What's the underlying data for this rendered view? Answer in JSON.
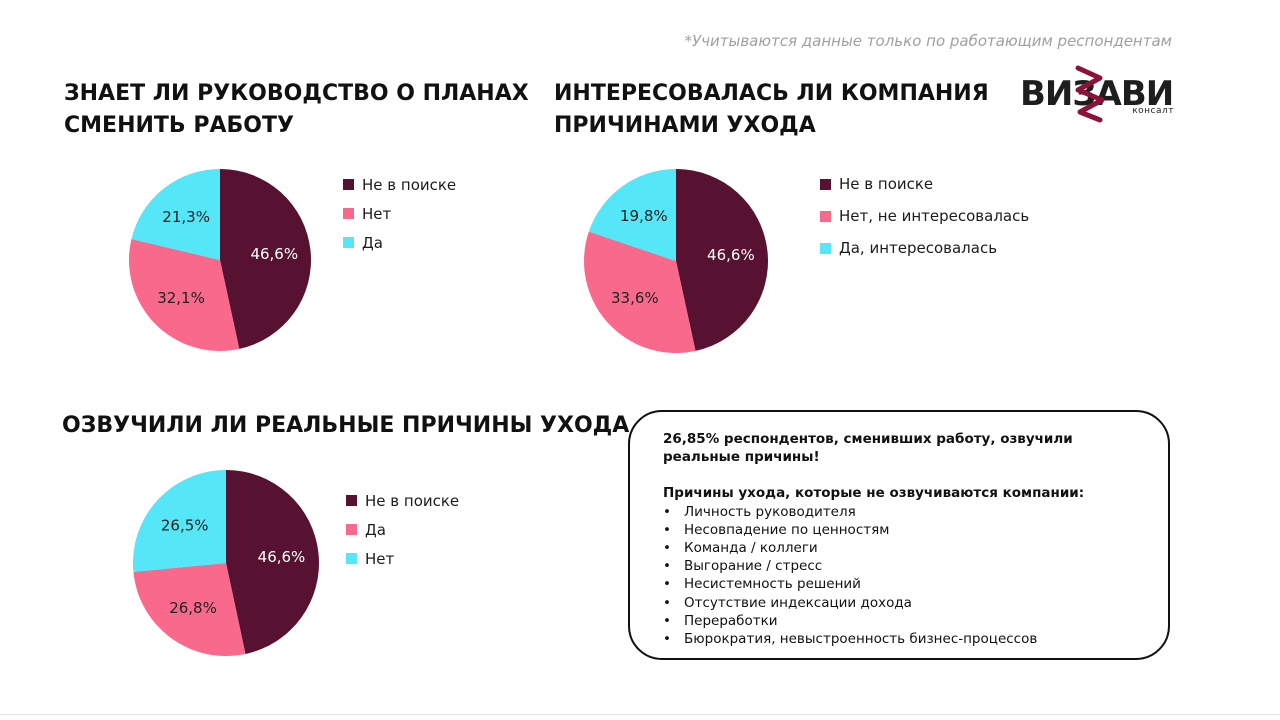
{
  "header": {
    "note": "*Учитываются данные только по работающим респондентам",
    "logo": {
      "word": "ВИЗАВИ",
      "sub": "консалт"
    }
  },
  "colors": {
    "dark": "#561230",
    "pink": "#f8698c",
    "cyan": "#55e6f7"
  },
  "chart_data": [
    {
      "type": "pie",
      "title": "ЗНАЕТ ЛИ РУКОВОДСТВО О ПЛАНАХ СМЕНИТЬ РАБОТУ",
      "title_lines": [
        "ЗНАЕТ ЛИ РУКОВОДСТВО О ПЛАНАХ",
        "СМЕНИТЬ РАБОТУ"
      ],
      "slices": [
        {
          "label": "Не в поиске",
          "value": 46.6,
          "display": "46,6%",
          "color": "#561230",
          "text_color": "#ffffff"
        },
        {
          "label": "Нет",
          "value": 32.1,
          "display": "32,1%",
          "color": "#f8698c",
          "text_color": "#222222"
        },
        {
          "label": "Да",
          "value": 21.3,
          "display": "21,3%",
          "color": "#55e6f7",
          "text_color": "#222222"
        }
      ],
      "legend_position": "right"
    },
    {
      "type": "pie",
      "title": "ИНТЕРЕСОВАЛАСЬ ЛИ КОМПАНИЯ ПРИЧИНАМИ УХОДА",
      "title_lines": [
        "ИНТЕРЕСОВАЛАСЬ ЛИ КОМПАНИЯ",
        "ПРИЧИНАМИ УХОДА"
      ],
      "slices": [
        {
          "label": "Не в поиске",
          "value": 46.6,
          "display": "46,6%",
          "color": "#561230",
          "text_color": "#ffffff"
        },
        {
          "label": "Нет, не интересовалась",
          "value": 33.6,
          "display": "33,6%",
          "color": "#f8698c",
          "text_color": "#222222"
        },
        {
          "label": "Да, интересовалась",
          "value": 19.8,
          "display": "19,8%",
          "color": "#55e6f7",
          "text_color": "#222222"
        }
      ],
      "legend_position": "right"
    },
    {
      "type": "pie",
      "title": "ОЗВУЧИЛИ ЛИ РЕАЛЬНЫЕ ПРИЧИНЫ УХОДА",
      "title_lines": [
        "ОЗВУЧИЛИ ЛИ РЕАЛЬНЫЕ ПРИЧИНЫ УХОДА"
      ],
      "slices": [
        {
          "label": "Не в поиске",
          "value": 46.6,
          "display": "46,6%",
          "color": "#561230",
          "text_color": "#ffffff"
        },
        {
          "label": "Да",
          "value": 26.8,
          "display": "26,8%",
          "color": "#f8698c",
          "text_color": "#222222"
        },
        {
          "label": "Нет",
          "value": 26.5,
          "display": "26,5%",
          "color": "#55e6f7",
          "text_color": "#222222"
        }
      ],
      "legend_position": "right"
    }
  ],
  "infobox": {
    "headline": "26,85% респондентов, сменивших работу, озвучили реальные причины!",
    "list_title": "Причины ухода, которые не озвучиваются компании:",
    "reasons": [
      "Личность руководителя",
      "Несовпадение по ценностям",
      "Команда / коллеги",
      "Выгорание / стресс",
      "Несистемность решений",
      "Отсутствие индексации дохода",
      "Переработки",
      "Бюрократия, невыстроенность бизнес-процессов"
    ]
  }
}
